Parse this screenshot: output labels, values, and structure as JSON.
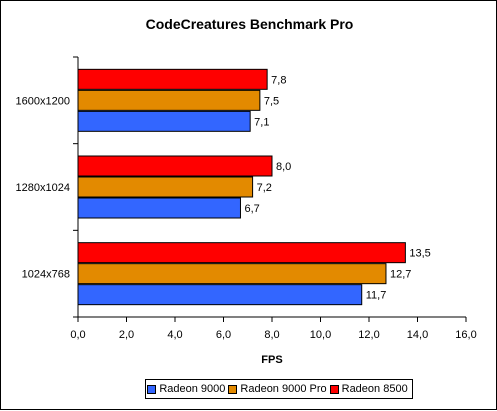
{
  "chart_data": {
    "type": "bar",
    "orientation": "horizontal",
    "title": "CodeCreatures Benchmark Pro",
    "xlabel": "FPS",
    "ylabel": "",
    "xlim": [
      0,
      16
    ],
    "x_ticks": [
      "0,0",
      "2,0",
      "4,0",
      "6,0",
      "8,0",
      "10,0",
      "12,0",
      "14,0",
      "16,0"
    ],
    "categories": [
      "1600x1200",
      "1280x1024",
      "1024x768"
    ],
    "series": [
      {
        "name": "Radeon 8500",
        "color": "#ff0000",
        "values": [
          7.8,
          8.0,
          13.5
        ],
        "labels": [
          "7,8",
          "8,0",
          "13,5"
        ]
      },
      {
        "name": "Radeon 9000 Pro",
        "color": "#e38a00",
        "values": [
          7.5,
          7.2,
          12.7
        ],
        "labels": [
          "7,5",
          "7,2",
          "12,7"
        ]
      },
      {
        "name": "Radeon 9000",
        "color": "#3366ff",
        "values": [
          7.1,
          6.7,
          11.7
        ],
        "labels": [
          "7,1",
          "6,7",
          "11,7"
        ]
      }
    ],
    "legend": {
      "position": "bottom",
      "items": [
        {
          "name": "Radeon 9000",
          "color": "#3366ff"
        },
        {
          "name": "Radeon 9000 Pro",
          "color": "#e38a00"
        },
        {
          "name": "Radeon 8500",
          "color": "#ff0000"
        }
      ]
    },
    "grid": false
  }
}
